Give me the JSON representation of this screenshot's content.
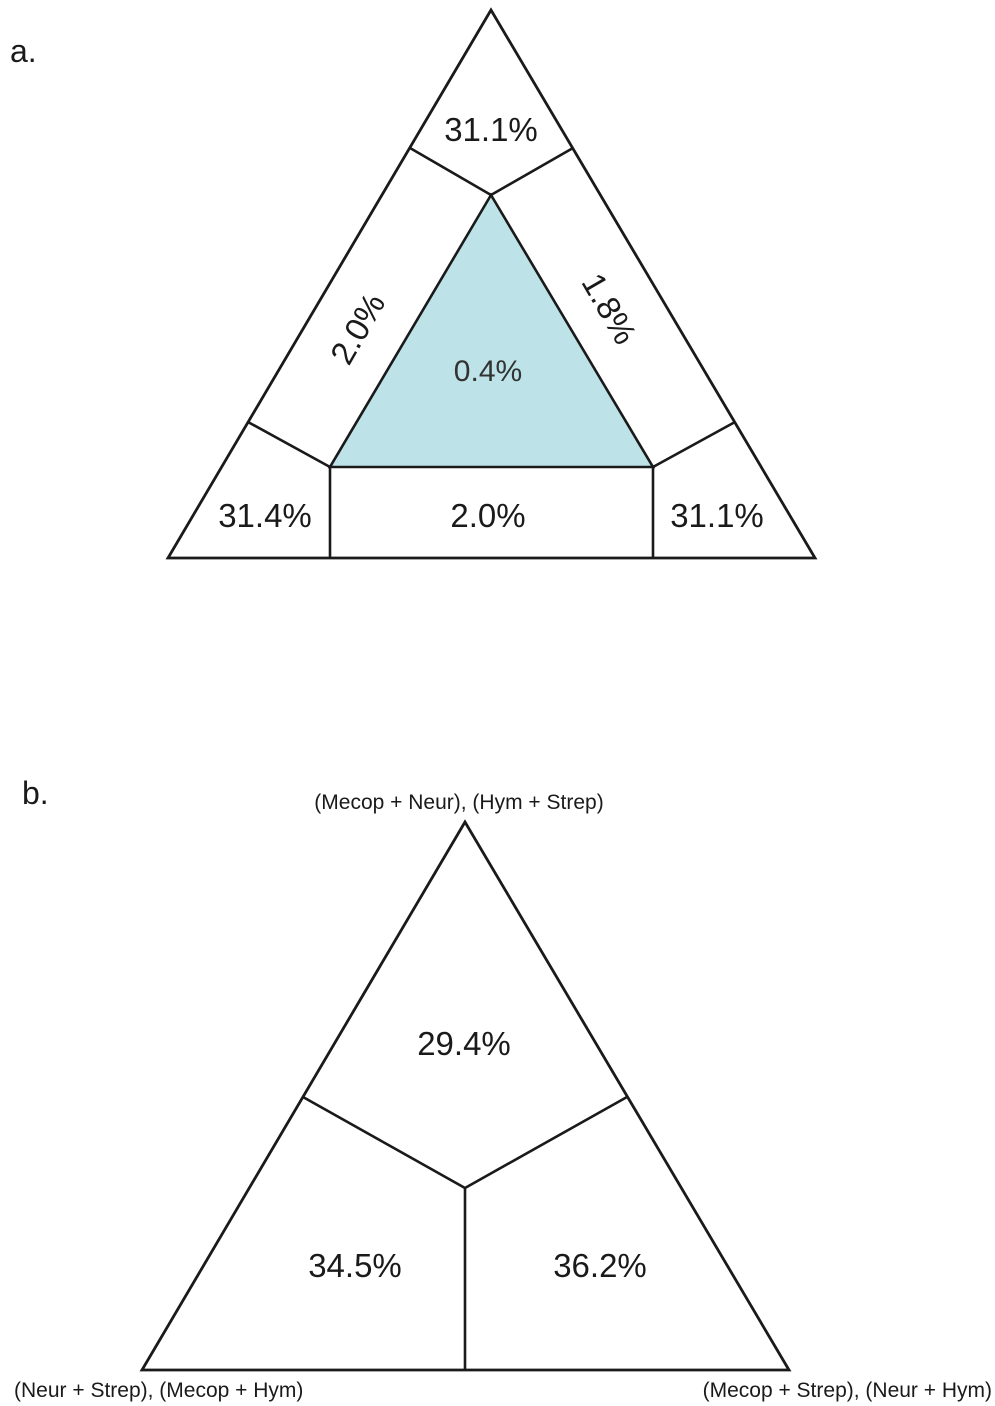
{
  "panel_a": {
    "letter": "a.",
    "center_color": "#bde3e8",
    "regions": {
      "top": "31.1%",
      "left_side": "2.0%",
      "right_side": "1.8%",
      "center": "0.4%",
      "bottom_left": "31.4%",
      "bottom_middle": "2.0%",
      "bottom_right": "31.1%"
    }
  },
  "panel_b": {
    "letter": "b.",
    "vertices": {
      "top": "(Mecop + Neur), (Hym + Strep)",
      "bottom_left": "(Neur + Strep), (Mecop + Hym)",
      "bottom_right": "(Mecop + Strep), (Neur + Hym)"
    },
    "regions": {
      "top": "29.4%",
      "bottom_left": "34.5%",
      "bottom_right": "36.2%"
    }
  }
}
